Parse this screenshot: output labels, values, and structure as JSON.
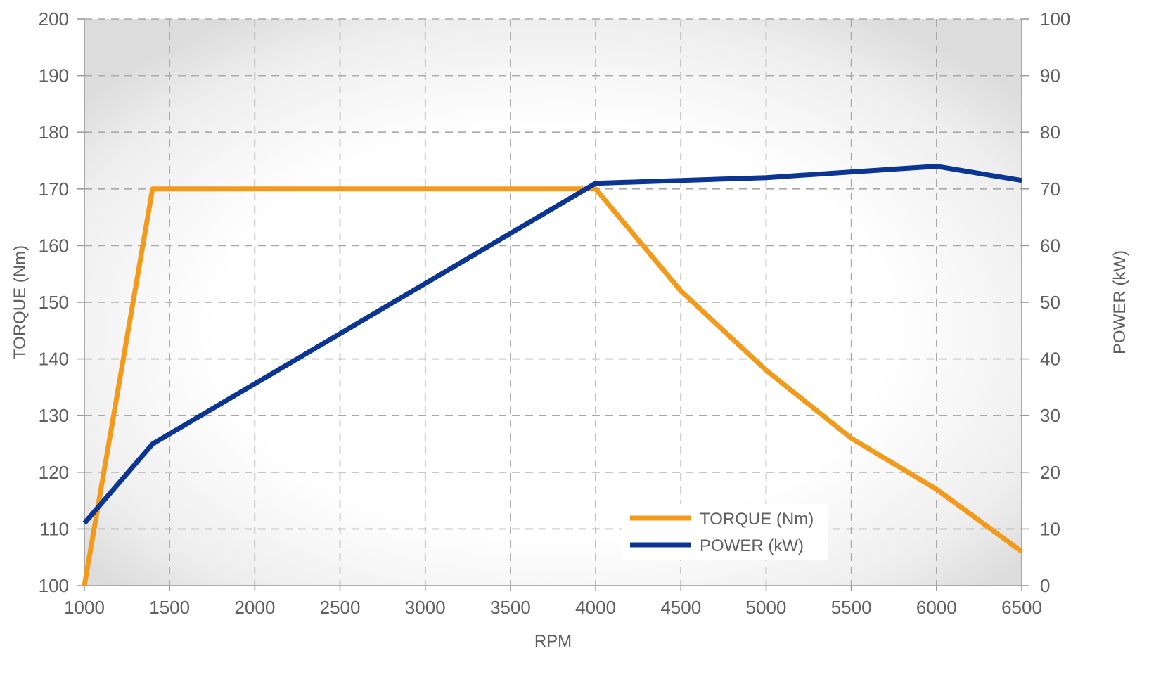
{
  "chart_data": {
    "type": "line",
    "title": "",
    "x": [
      1000,
      1400,
      4000,
      4500,
      5000,
      5500,
      6000,
      6500
    ],
    "xlabel": "RPM",
    "xlim": [
      1000,
      6500
    ],
    "xticks": [
      "1000",
      "1500",
      "2000",
      "2500",
      "3000",
      "3500",
      "4000",
      "4500",
      "5000",
      "5500",
      "6000",
      "6500"
    ],
    "ylabel_left": "TORQUE (Nm)",
    "ylim_left": [
      100,
      200
    ],
    "yticks_left": [
      "100",
      "110",
      "120",
      "130",
      "140",
      "150",
      "160",
      "170",
      "180",
      "190",
      "200"
    ],
    "ylabel_right": "POWER (kW)",
    "ylim_right": [
      0,
      100
    ],
    "yticks_right": [
      "0",
      "10",
      "20",
      "30",
      "40",
      "50",
      "60",
      "70",
      "80",
      "90",
      "100"
    ],
    "grid": true,
    "legend_position": "bottom-right",
    "series": [
      {
        "name": "TORQUE (Nm)",
        "axis": "left",
        "color": "#F39A1B",
        "points": [
          [
            1000,
            100
          ],
          [
            1400,
            170
          ],
          [
            4000,
            170
          ],
          [
            4500,
            152
          ],
          [
            5000,
            138
          ],
          [
            5500,
            126
          ],
          [
            6000,
            117
          ],
          [
            6500,
            106
          ]
        ]
      },
      {
        "name": "POWER (kW)",
        "axis": "right",
        "color": "#0A3592",
        "points": [
          [
            1000,
            11
          ],
          [
            1400,
            25
          ],
          [
            4000,
            71
          ],
          [
            4500,
            71.5
          ],
          [
            5000,
            72
          ],
          [
            5500,
            73
          ],
          [
            6000,
            74
          ],
          [
            6500,
            71.5
          ]
        ]
      }
    ]
  }
}
